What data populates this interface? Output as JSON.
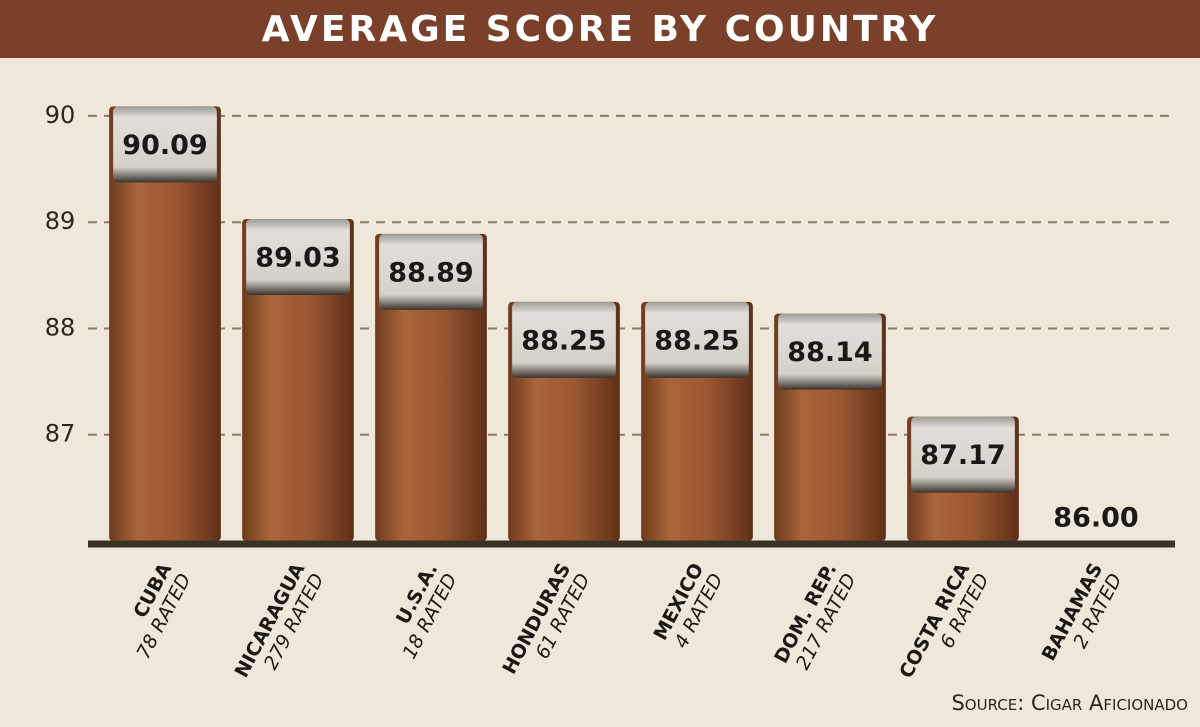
{
  "chart_data": {
    "type": "bar",
    "title": "AVERAGE SCORE BY COUNTRY",
    "categories": [
      "CUBA",
      "NICARAGUA",
      "U.S.A.",
      "HONDURAS",
      "MEXICO",
      "DOM. REP.",
      "COSTA RICA",
      "BAHAMAS"
    ],
    "sublabels": [
      "78 RATED",
      "279 RATED",
      "18 RATED",
      "61 RATED",
      "4 RATED",
      "217 RATED",
      "6 RATED",
      "2 RATED"
    ],
    "values": [
      90.09,
      89.03,
      88.89,
      88.25,
      88.25,
      88.14,
      87.17,
      86.0
    ],
    "value_labels": [
      "90.09",
      "89.03",
      "88.89",
      "88.25",
      "88.25",
      "88.14",
      "87.17",
      "86.00"
    ],
    "color": "#9a5732",
    "ylim": [
      86,
      90.5
    ],
    "yticks": [
      87,
      88,
      89,
      90
    ],
    "grid": true,
    "source": "Source: Cigar Aficionado"
  }
}
